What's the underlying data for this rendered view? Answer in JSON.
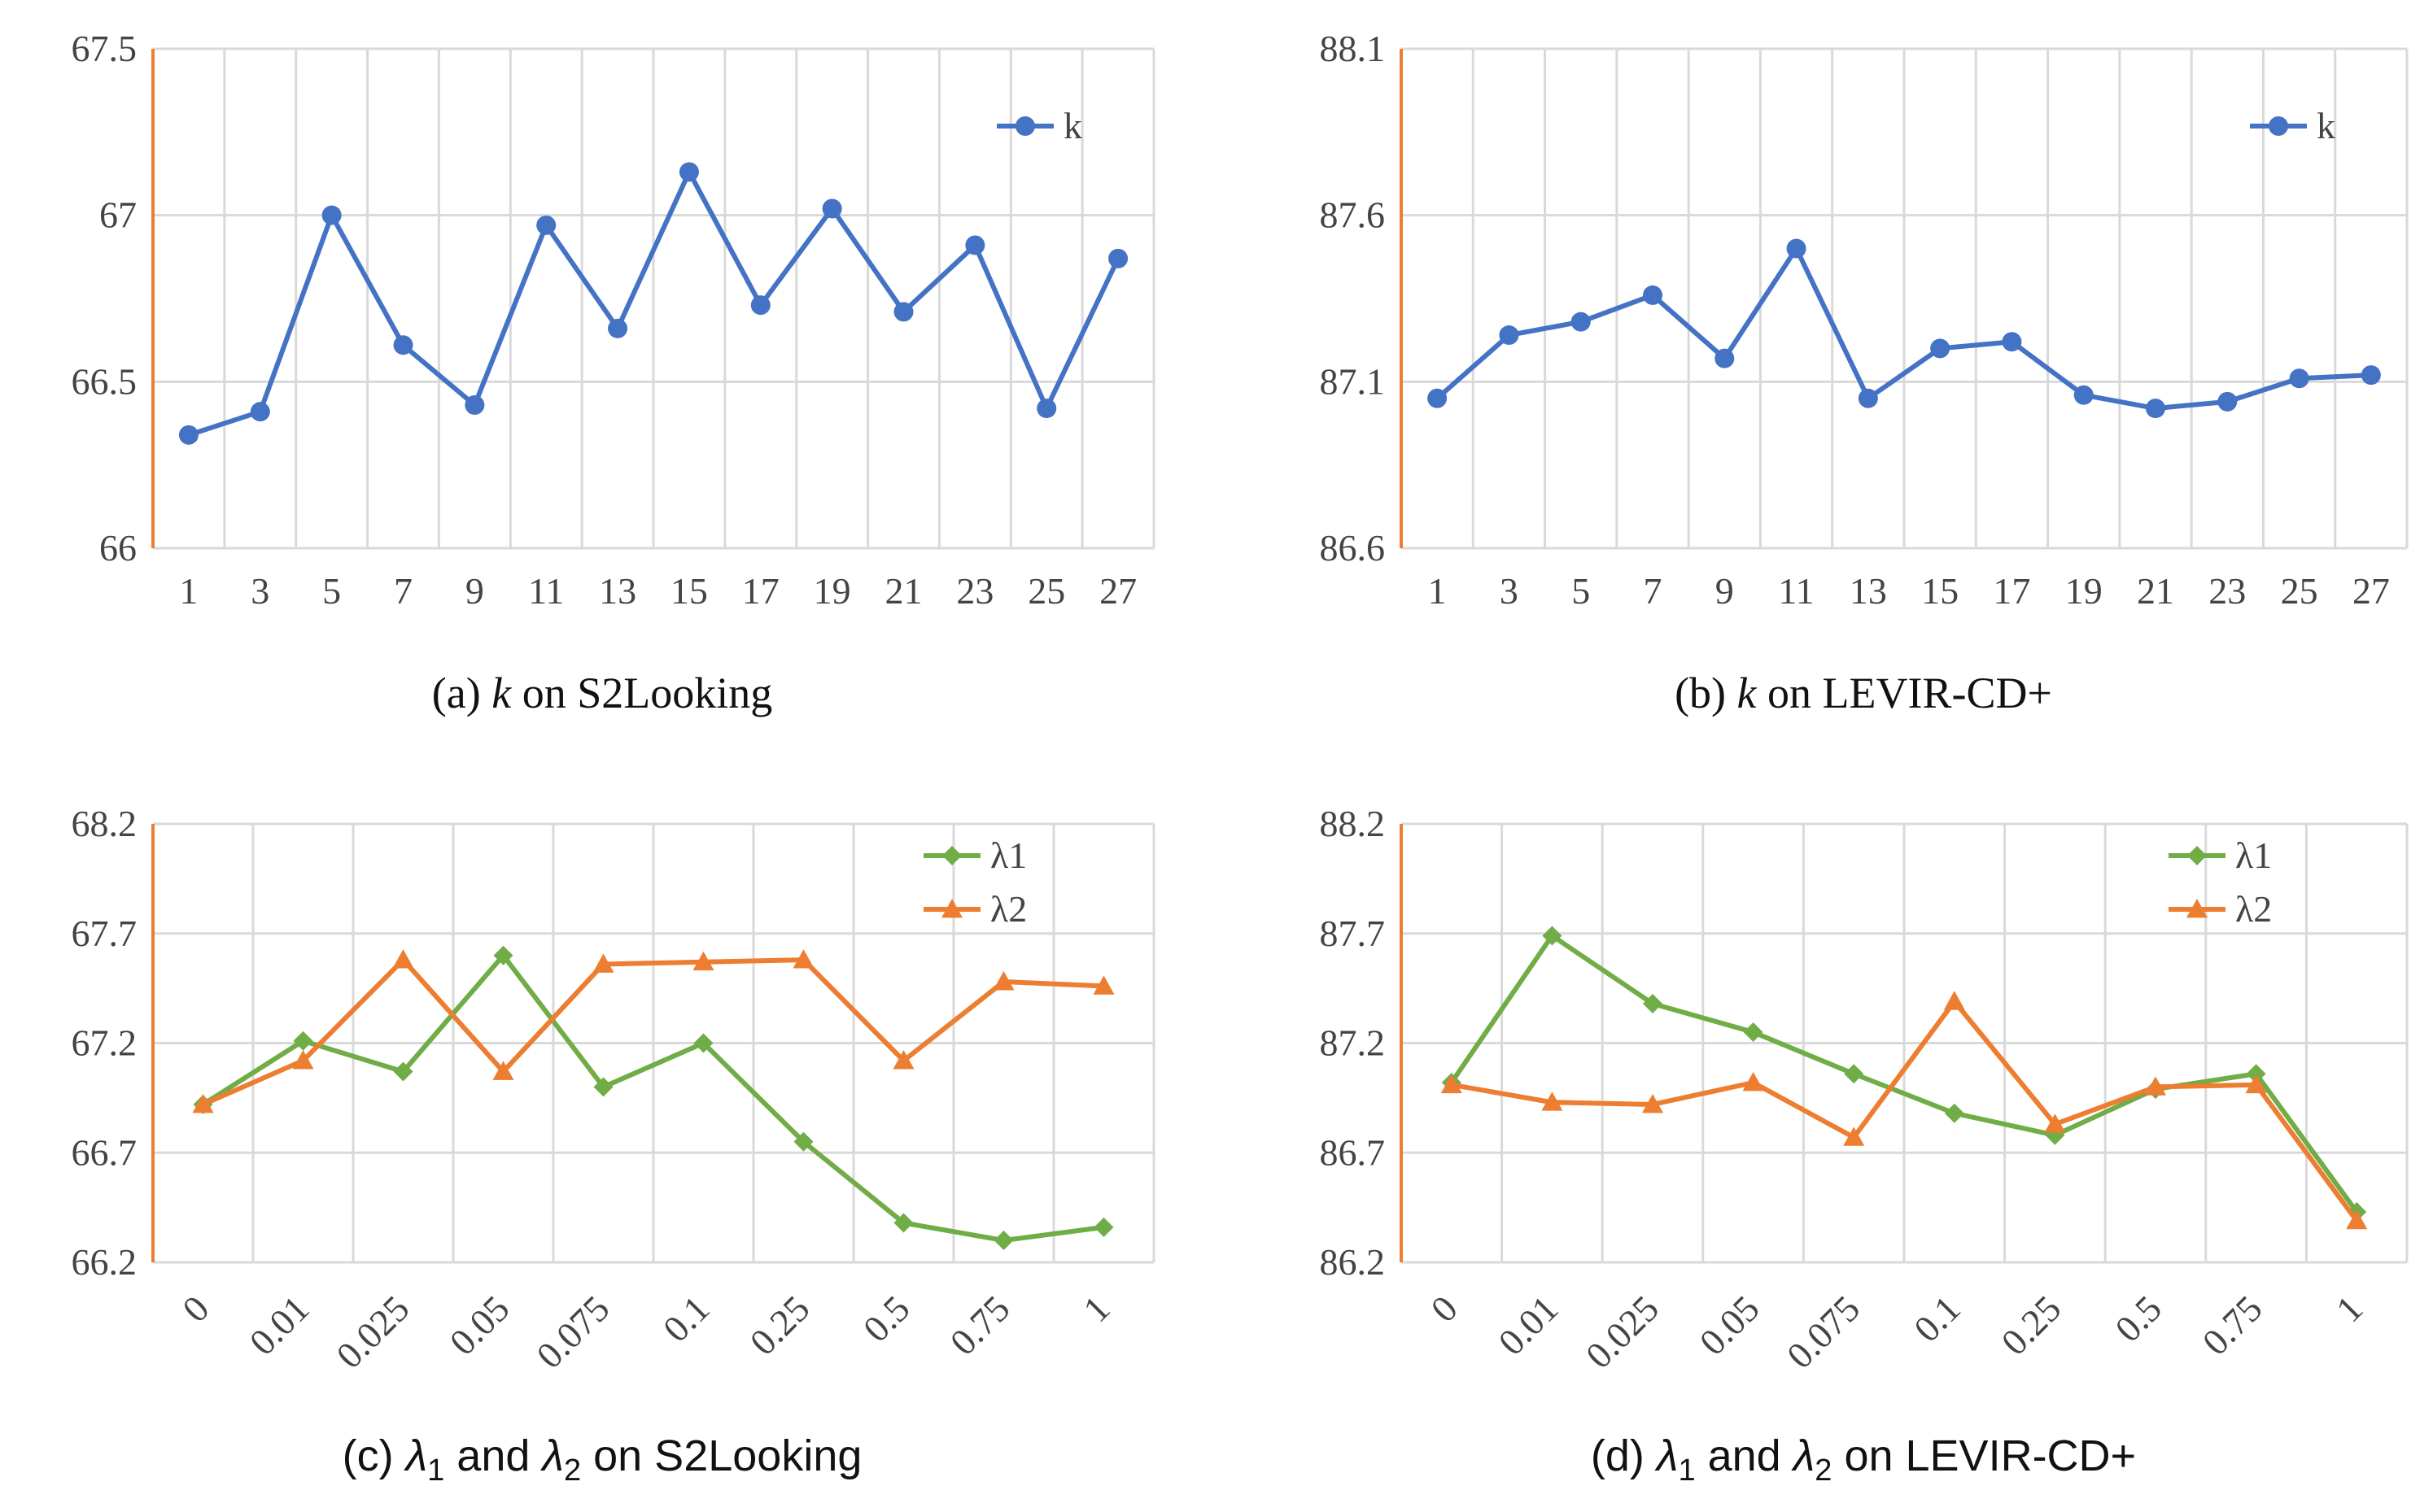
{
  "chart_data": [
    {
      "id": "a",
      "type": "line",
      "title": "(a) k on S2Looking",
      "caption": {
        "prefix": "(a) ",
        "var1": "k",
        "suffix": " on S2Looking"
      },
      "categories": [
        "1",
        "3",
        "5",
        "7",
        "9",
        "11",
        "13",
        "15",
        "17",
        "19",
        "21",
        "23",
        "25",
        "27"
      ],
      "ylim": [
        66,
        67.5
      ],
      "yticks": [
        "66",
        "66.5",
        "67",
        "67.5"
      ],
      "grid": true,
      "legend_position": "top-right",
      "series": [
        {
          "name": "k",
          "color": "#4472C4",
          "marker": "circle",
          "values": [
            66.34,
            66.41,
            67.0,
            66.61,
            66.43,
            66.97,
            66.66,
            67.13,
            66.73,
            67.02,
            66.71,
            66.91,
            66.42,
            66.87
          ]
        }
      ]
    },
    {
      "id": "b",
      "type": "line",
      "title": "(b) k on LEVIR-CD+",
      "caption": {
        "prefix": "(b) ",
        "var1": "k",
        "suffix": " on LEVIR-CD+"
      },
      "categories": [
        "1",
        "3",
        "5",
        "7",
        "9",
        "11",
        "13",
        "15",
        "17",
        "19",
        "21",
        "23",
        "25",
        "27"
      ],
      "ylim": [
        86.6,
        88.1
      ],
      "yticks": [
        "86.6",
        "87.1",
        "87.6",
        "88.1"
      ],
      "grid": true,
      "legend_position": "top-right",
      "series": [
        {
          "name": "k",
          "color": "#4472C4",
          "marker": "circle",
          "values": [
            87.05,
            87.24,
            87.28,
            87.36,
            87.17,
            87.5,
            87.05,
            87.2,
            87.22,
            87.06,
            87.02,
            87.04,
            87.11,
            87.12
          ]
        }
      ]
    },
    {
      "id": "c",
      "type": "line",
      "title": "(c) λ1 and λ2 on S2Looking",
      "caption": {
        "prefix": "(c) ",
        "var1": "λ",
        "sub1": "1",
        "mid": " and ",
        "var2": "λ",
        "sub2": "2",
        "suffix": " on S2Looking"
      },
      "categories": [
        "0",
        "0.01",
        "0.025",
        "0.05",
        "0.075",
        "0.1",
        "0.25",
        "0.5",
        "0.75",
        "1"
      ],
      "ylim": [
        66.2,
        68.2
      ],
      "yticks": [
        "66.2",
        "66.7",
        "67.2",
        "67.7",
        "68.2"
      ],
      "grid": true,
      "legend_position": "top-right",
      "series": [
        {
          "name": "λ1",
          "color": "#70AD47",
          "marker": "diamond",
          "values": [
            66.92,
            67.21,
            67.07,
            67.6,
            67.0,
            67.2,
            66.75,
            66.38,
            66.3,
            66.36
          ]
        },
        {
          "name": "λ2",
          "color": "#ED7D31",
          "marker": "triangle",
          "values": [
            66.92,
            67.12,
            67.58,
            67.07,
            67.56,
            67.57,
            67.58,
            67.12,
            67.48,
            67.46
          ]
        }
      ]
    },
    {
      "id": "d",
      "type": "line",
      "title": "(d) λ1 and λ2 on LEVIR-CD+",
      "caption": {
        "prefix": "(d) ",
        "var1": "λ",
        "sub1": "1",
        "mid": " and ",
        "var2": "λ",
        "sub2": "2",
        "suffix": " on LEVIR-CD+"
      },
      "categories": [
        "0",
        "0.01",
        "0.025",
        "0.05",
        "0.075",
        "0.1",
        "0.25",
        "0.5",
        "0.75",
        "1"
      ],
      "ylim": [
        86.2,
        88.2
      ],
      "yticks": [
        "86.2",
        "86.7",
        "87.2",
        "87.7",
        "88.2"
      ],
      "grid": true,
      "legend_position": "top-right",
      "series": [
        {
          "name": "λ1",
          "color": "#70AD47",
          "marker": "diamond",
          "values": [
            87.02,
            87.69,
            87.38,
            87.25,
            87.06,
            86.88,
            86.78,
            86.99,
            87.06,
            86.43
          ]
        },
        {
          "name": "λ2",
          "color": "#ED7D31",
          "marker": "triangle",
          "values": [
            87.01,
            86.93,
            86.92,
            87.02,
            86.77,
            87.39,
            86.83,
            87.0,
            87.01,
            86.39
          ]
        }
      ]
    }
  ],
  "colors": {
    "grid": "#D9D9D9",
    "y_axis": "#ED7D31",
    "tick_text": "#444444",
    "caption": "#111111"
  }
}
